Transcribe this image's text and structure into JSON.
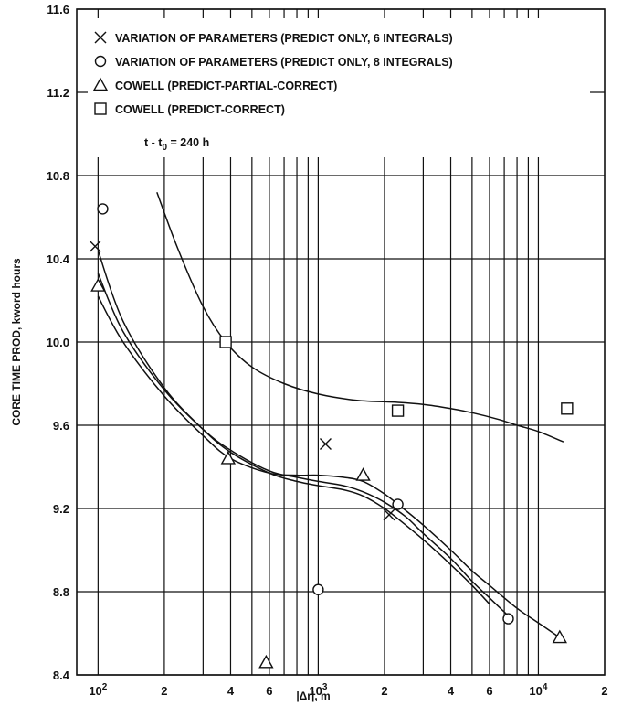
{
  "chart_data": {
    "type": "scatter",
    "xscale": "log",
    "xlim": [
      80,
      20000
    ],
    "ylim": [
      8.4,
      11.6
    ],
    "grid": true,
    "legend_position": "top-left",
    "xlabel": "|Δr|, m",
    "ylabel": "CORE TIME PROD, kword hours",
    "x_ticks": [
      {
        "value": 100,
        "base": "10",
        "exp": "2"
      },
      {
        "value": 200,
        "base": "2",
        "exp": ""
      },
      {
        "value": 400,
        "base": "4",
        "exp": ""
      },
      {
        "value": 600,
        "base": "6",
        "exp": ""
      },
      {
        "value": 1000,
        "base": "10",
        "exp": "3"
      },
      {
        "value": 2000,
        "base": "2",
        "exp": ""
      },
      {
        "value": 4000,
        "base": "4",
        "exp": ""
      },
      {
        "value": 6000,
        "base": "6",
        "exp": ""
      },
      {
        "value": 10000,
        "base": "10",
        "exp": "4"
      },
      {
        "value": 20000,
        "base": "2",
        "exp": ""
      }
    ],
    "y_ticks": [
      "8.4",
      "8.8",
      "9.2",
      "9.6",
      "10.0",
      "10.4",
      "10.8",
      "11.2",
      "11.6"
    ],
    "annotation": {
      "prefix": "t - t",
      "sub": "0",
      "suffix": " = 240 h"
    },
    "series": [
      {
        "name": "VARIATION OF PARAMETERS (PREDICT ONLY, 6 INTEGRALS)",
        "marker": "x",
        "points": [
          [
            97,
            10.46
          ],
          [
            1080,
            9.51
          ],
          [
            2100,
            9.17
          ]
        ],
        "curve": [
          [
            100,
            10.44
          ],
          [
            130,
            10.1
          ],
          [
            200,
            9.78
          ],
          [
            300,
            9.58
          ],
          [
            400,
            9.47
          ],
          [
            600,
            9.37
          ],
          [
            800,
            9.33
          ],
          [
            1000,
            9.31
          ],
          [
            1300,
            9.29
          ],
          [
            1600,
            9.26
          ],
          [
            2000,
            9.2
          ],
          [
            2500,
            9.12
          ],
          [
            3000,
            9.05
          ],
          [
            4000,
            8.93
          ],
          [
            5000,
            8.83
          ],
          [
            6000,
            8.74
          ]
        ]
      },
      {
        "name": "VARIATION OF PARAMETERS (PREDICT ONLY, 8 INTEGRALS)",
        "marker": "circle",
        "points": [
          [
            105,
            10.64
          ],
          [
            1000,
            8.81
          ],
          [
            2300,
            9.22
          ],
          [
            7300,
            8.67
          ]
        ],
        "curve": [
          [
            100,
            10.33
          ],
          [
            130,
            10.05
          ],
          [
            200,
            9.77
          ],
          [
            300,
            9.58
          ],
          [
            400,
            9.48
          ],
          [
            600,
            9.38
          ],
          [
            800,
            9.35
          ],
          [
            1000,
            9.33
          ],
          [
            1300,
            9.31
          ],
          [
            1600,
            9.28
          ],
          [
            2000,
            9.23
          ],
          [
            2500,
            9.16
          ],
          [
            3000,
            9.08
          ],
          [
            4000,
            8.96
          ],
          [
            5000,
            8.85
          ],
          [
            6000,
            8.77
          ],
          [
            7200,
            8.69
          ]
        ]
      },
      {
        "name": "COWELL (PREDICT-PARTIAL-CORRECT)",
        "marker": "triangle",
        "points": [
          [
            100,
            10.27
          ],
          [
            390,
            9.44
          ],
          [
            580,
            8.46
          ],
          [
            1600,
            9.36
          ],
          [
            12500,
            8.58
          ]
        ],
        "curve": [
          [
            100,
            10.22
          ],
          [
            130,
            10.0
          ],
          [
            200,
            9.74
          ],
          [
            300,
            9.55
          ],
          [
            400,
            9.44
          ],
          [
            600,
            9.37
          ],
          [
            800,
            9.36
          ],
          [
            1000,
            9.36
          ],
          [
            1300,
            9.35
          ],
          [
            1600,
            9.33
          ],
          [
            2000,
            9.27
          ],
          [
            2500,
            9.19
          ],
          [
            3000,
            9.12
          ],
          [
            4000,
            9.0
          ],
          [
            5000,
            8.9
          ],
          [
            6000,
            8.83
          ],
          [
            8000,
            8.72
          ],
          [
            10000,
            8.65
          ],
          [
            12500,
            8.58
          ]
        ]
      },
      {
        "name": "COWELL (PREDICT-CORRECT)",
        "marker": "square",
        "points": [
          [
            380,
            10.0
          ],
          [
            2300,
            9.67
          ],
          [
            13500,
            9.68
          ]
        ],
        "curve": [
          [
            185,
            10.72
          ],
          [
            230,
            10.45
          ],
          [
            300,
            10.17
          ],
          [
            380,
            10.0
          ],
          [
            500,
            9.88
          ],
          [
            700,
            9.8
          ],
          [
            1000,
            9.75
          ],
          [
            1500,
            9.72
          ],
          [
            2300,
            9.71
          ],
          [
            3000,
            9.7
          ],
          [
            4000,
            9.68
          ],
          [
            5000,
            9.66
          ],
          [
            6500,
            9.63
          ],
          [
            8000,
            9.6
          ],
          [
            10000,
            9.57
          ],
          [
            13000,
            9.52
          ]
        ]
      }
    ]
  }
}
